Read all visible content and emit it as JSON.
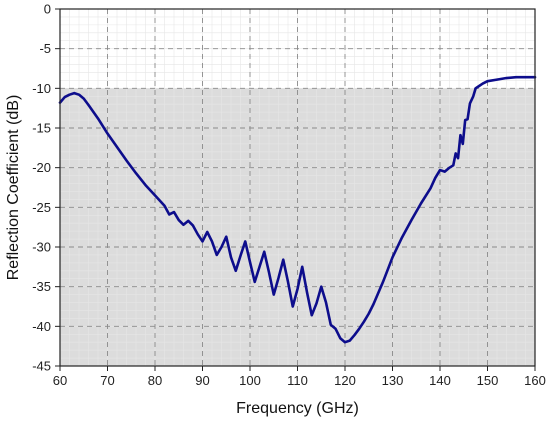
{
  "chart_data": {
    "type": "line",
    "title": "",
    "xlabel": "Frequency (GHz)",
    "ylabel": "Reflection Coefficient (dB)",
    "xlim": [
      60,
      160
    ],
    "ylim": [
      -45,
      0
    ],
    "x_ticks": [
      60,
      70,
      80,
      90,
      100,
      110,
      120,
      130,
      140,
      150,
      160
    ],
    "y_ticks": [
      0,
      -5,
      -10,
      -15,
      -20,
      -25,
      -30,
      -35,
      -40,
      -45
    ],
    "x_tick_labels": [
      "60",
      "70",
      "80",
      "90",
      "100",
      "110",
      "120",
      "130",
      "140",
      "150",
      "160"
    ],
    "y_tick_labels": [
      "0",
      "-5",
      "-10",
      "-15",
      "-20",
      "-25",
      "-30",
      "-35",
      "-40",
      "-45"
    ],
    "grid": true,
    "threshold_band": {
      "from": -45,
      "to": -10,
      "color": "#dcdcdc"
    },
    "series": [
      {
        "color": "#0d0d8c",
        "x": [
          60,
          61,
          62,
          63,
          64,
          65,
          66,
          68,
          70,
          72,
          74,
          76,
          78,
          80,
          82,
          83,
          84,
          85,
          86,
          87,
          88,
          89,
          90,
          91,
          92,
          93,
          94,
          95,
          96,
          97,
          98,
          99,
          100,
          101,
          102,
          103,
          104,
          105,
          106,
          107,
          108,
          109,
          110,
          111,
          112,
          113,
          114,
          115,
          116,
          117,
          118,
          119,
          120,
          121,
          122,
          123,
          124,
          125,
          126,
          127,
          128,
          130,
          132,
          134,
          136,
          138,
          139,
          140,
          141,
          142,
          142.8,
          143.3,
          143.8,
          144.3,
          144.8,
          145.3,
          145.8,
          146.3,
          147,
          147.5,
          148,
          149,
          150,
          152,
          154,
          156,
          158,
          160
        ],
        "y": [
          -11.8,
          -11.1,
          -10.8,
          -10.6,
          -10.8,
          -11.3,
          -12.1,
          -13.8,
          -15.7,
          -17.4,
          -19.1,
          -20.7,
          -22.2,
          -23.5,
          -24.8,
          -25.9,
          -25.6,
          -26.6,
          -27.2,
          -26.7,
          -27.3,
          -28.4,
          -29.3,
          -28.1,
          -29.3,
          -31.0,
          -30.0,
          -28.7,
          -31.3,
          -33.0,
          -31.1,
          -29.3,
          -31.9,
          -34.4,
          -32.5,
          -30.6,
          -33.2,
          -36.0,
          -33.9,
          -31.6,
          -34.4,
          -37.5,
          -35.3,
          -32.5,
          -35.7,
          -38.6,
          -37.1,
          -35.0,
          -37.0,
          -39.8,
          -40.3,
          -41.5,
          -42.0,
          -41.8,
          -41.1,
          -40.3,
          -39.4,
          -38.4,
          -37.2,
          -35.8,
          -34.4,
          -31.3,
          -28.8,
          -26.6,
          -24.5,
          -22.6,
          -21.3,
          -20.3,
          -20.5,
          -20.0,
          -19.7,
          -18.2,
          -18.8,
          -15.9,
          -17.0,
          -14.0,
          -13.9,
          -11.9,
          -11.0,
          -10.0,
          -9.8,
          -9.4,
          -9.1,
          -8.9,
          -8.7,
          -8.6,
          -8.6,
          -8.6
        ]
      }
    ]
  }
}
